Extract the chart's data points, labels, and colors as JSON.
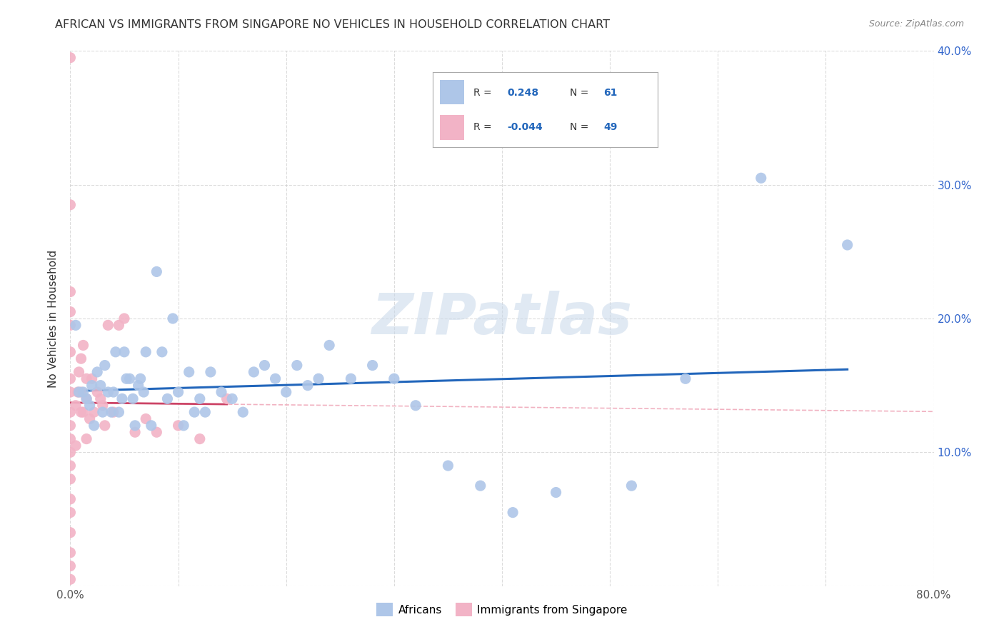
{
  "title": "AFRICAN VS IMMIGRANTS FROM SINGAPORE NO VEHICLES IN HOUSEHOLD CORRELATION CHART",
  "source": "Source: ZipAtlas.com",
  "ylabel": "No Vehicles in Household",
  "watermark": "ZIPatlas",
  "xlim": [
    0,
    0.8
  ],
  "ylim": [
    0,
    0.4
  ],
  "blue_R": 0.248,
  "blue_N": 61,
  "pink_R": -0.044,
  "pink_N": 49,
  "blue_color": "#aec6e8",
  "pink_color": "#f2b3c6",
  "blue_line_color": "#2266bb",
  "pink_line_color": "#cc4466",
  "pink_dash_color": "#f0aabb",
  "grid_color": "#cccccc",
  "background_color": "#ffffff",
  "legend_box_color": "#ffffff",
  "legend_border_color": "#cccccc",
  "blue_points_x": [
    0.005,
    0.008,
    0.012,
    0.015,
    0.018,
    0.02,
    0.022,
    0.025,
    0.028,
    0.03,
    0.032,
    0.035,
    0.038,
    0.04,
    0.042,
    0.045,
    0.048,
    0.05,
    0.052,
    0.055,
    0.058,
    0.06,
    0.063,
    0.065,
    0.068,
    0.07,
    0.075,
    0.08,
    0.085,
    0.09,
    0.095,
    0.1,
    0.105,
    0.11,
    0.115,
    0.12,
    0.125,
    0.13,
    0.14,
    0.15,
    0.16,
    0.17,
    0.18,
    0.19,
    0.2,
    0.21,
    0.22,
    0.23,
    0.24,
    0.26,
    0.28,
    0.3,
    0.32,
    0.35,
    0.38,
    0.41,
    0.45,
    0.52,
    0.57,
    0.64,
    0.72
  ],
  "blue_points_y": [
    0.195,
    0.145,
    0.145,
    0.14,
    0.135,
    0.15,
    0.12,
    0.16,
    0.15,
    0.13,
    0.165,
    0.145,
    0.13,
    0.145,
    0.175,
    0.13,
    0.14,
    0.175,
    0.155,
    0.155,
    0.14,
    0.12,
    0.15,
    0.155,
    0.145,
    0.175,
    0.12,
    0.235,
    0.175,
    0.14,
    0.2,
    0.145,
    0.12,
    0.16,
    0.13,
    0.14,
    0.13,
    0.16,
    0.145,
    0.14,
    0.13,
    0.16,
    0.165,
    0.155,
    0.145,
    0.165,
    0.15,
    0.155,
    0.18,
    0.155,
    0.165,
    0.155,
    0.135,
    0.09,
    0.075,
    0.055,
    0.07,
    0.075,
    0.155,
    0.305,
    0.255
  ],
  "pink_points_x": [
    0.0,
    0.0,
    0.0,
    0.0,
    0.0,
    0.0,
    0.0,
    0.0,
    0.0,
    0.0,
    0.0,
    0.0,
    0.0,
    0.0,
    0.0,
    0.0,
    0.0,
    0.0,
    0.0,
    0.0,
    0.005,
    0.005,
    0.007,
    0.008,
    0.01,
    0.01,
    0.01,
    0.012,
    0.012,
    0.015,
    0.015,
    0.015,
    0.018,
    0.02,
    0.022,
    0.025,
    0.028,
    0.03,
    0.032,
    0.035,
    0.04,
    0.045,
    0.05,
    0.06,
    0.07,
    0.08,
    0.1,
    0.12,
    0.145
  ],
  "pink_points_y": [
    0.005,
    0.015,
    0.025,
    0.04,
    0.055,
    0.065,
    0.08,
    0.09,
    0.1,
    0.11,
    0.12,
    0.13,
    0.145,
    0.155,
    0.175,
    0.195,
    0.205,
    0.22,
    0.285,
    0.395,
    0.105,
    0.135,
    0.145,
    0.16,
    0.13,
    0.145,
    0.17,
    0.13,
    0.18,
    0.11,
    0.14,
    0.155,
    0.125,
    0.155,
    0.13,
    0.145,
    0.14,
    0.135,
    0.12,
    0.195,
    0.13,
    0.195,
    0.2,
    0.115,
    0.125,
    0.115,
    0.12,
    0.11,
    0.14
  ]
}
